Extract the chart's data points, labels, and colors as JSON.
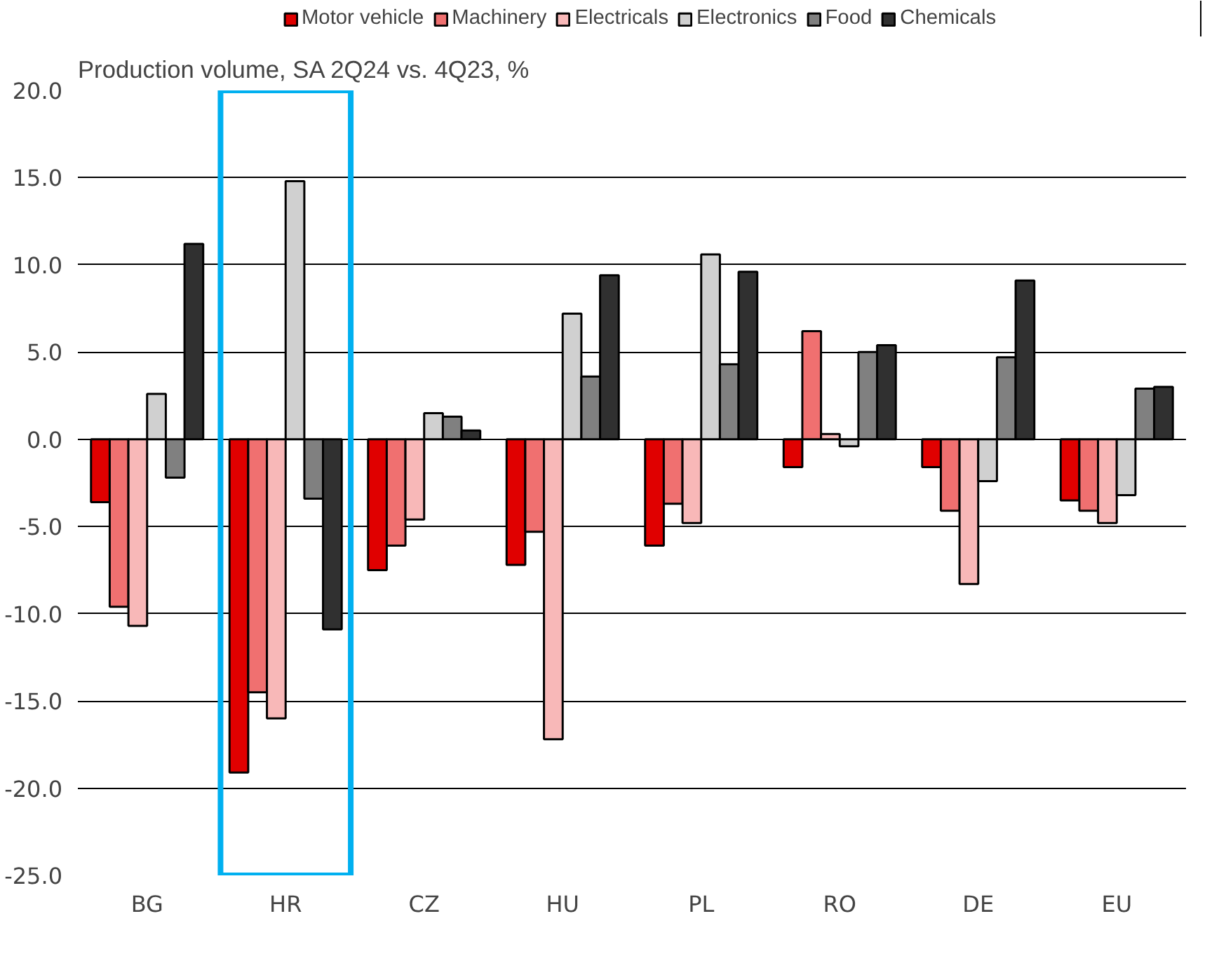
{
  "chart_data": {
    "type": "bar",
    "title": "Production volume, SA  2Q24 vs. 4Q23, %",
    "categories": [
      "BG",
      "HR",
      "CZ",
      "HU",
      "PL",
      "RO",
      "DE",
      "EU"
    ],
    "series": [
      {
        "name": "Motor vehicle",
        "color": "#e00000",
        "values": [
          -3.6,
          -19.1,
          -7.5,
          -7.2,
          -6.1,
          -1.6,
          -1.6,
          -3.5
        ]
      },
      {
        "name": "Machinery",
        "color": "#f07070",
        "values": [
          -9.6,
          -14.5,
          -6.1,
          -5.3,
          -3.7,
          6.2,
          -4.1,
          -4.1
        ]
      },
      {
        "name": "Electricals",
        "color": "#f8b8b8",
        "values": [
          -10.7,
          -16.0,
          -4.6,
          -17.2,
          -4.8,
          0.3,
          -8.3,
          -4.8
        ]
      },
      {
        "name": "Electronics",
        "color": "#d0d0d0",
        "values": [
          2.6,
          14.8,
          1.5,
          7.2,
          10.6,
          -0.4,
          -2.4,
          -3.2
        ]
      },
      {
        "name": "Food",
        "color": "#808080",
        "values": [
          -2.2,
          -3.4,
          1.3,
          3.6,
          4.3,
          5.0,
          4.7,
          2.9
        ]
      },
      {
        "name": "Chemicals",
        "color": "#303030",
        "values": [
          11.2,
          -10.9,
          0.5,
          9.4,
          9.6,
          5.4,
          9.1,
          3.0
        ]
      }
    ],
    "ylim": [
      -25,
      20
    ],
    "yticks": [
      {
        "value": -25,
        "label": "-25.0"
      },
      {
        "value": -20,
        "label": "-20.0"
      },
      {
        "value": -15,
        "label": "-15.0"
      },
      {
        "value": -10,
        "label": "-10.0"
      },
      {
        "value": -5,
        "label": "-5.0"
      },
      {
        "value": 0,
        "label": "0.0"
      },
      {
        "value": 5,
        "label": "5.0"
      },
      {
        "value": 10,
        "label": "10.0"
      },
      {
        "value": 15,
        "label": "15.0"
      },
      {
        "value": 20,
        "label": "20.0"
      }
    ],
    "grid": "y",
    "legend": "top"
  }
}
